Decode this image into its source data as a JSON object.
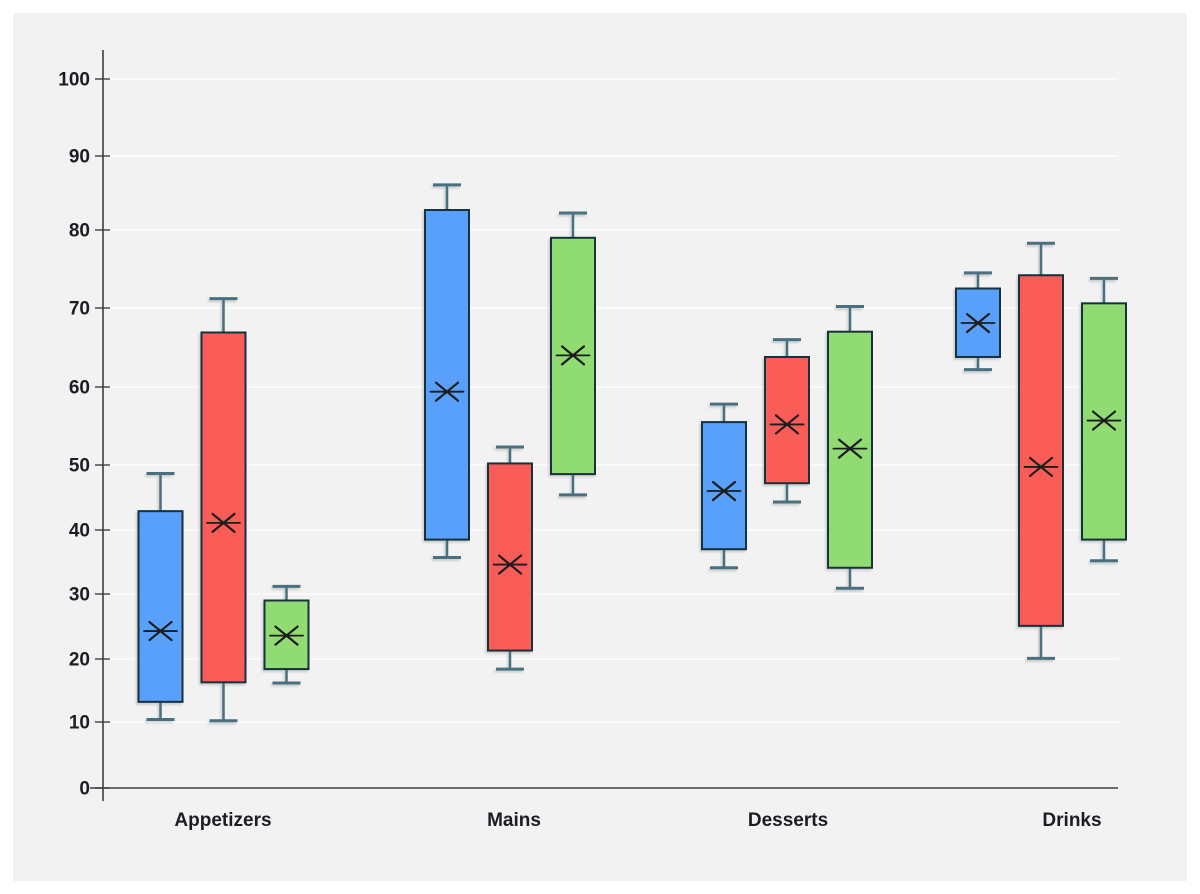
{
  "chart_data": {
    "type": "box",
    "title": "",
    "legend": "none",
    "grid": "horizontal",
    "mean_marker": "x-cross-with-horizontal-line",
    "categories": [
      "Appetizers",
      "Mains",
      "Desserts",
      "Drinks"
    ],
    "y_axis": {
      "min": 0,
      "max": 100,
      "tick_step": 10,
      "tick_labels": [
        "0",
        "10",
        "20",
        "30",
        "40",
        "50",
        "60",
        "70",
        "80",
        "90",
        "100"
      ]
    },
    "series": [
      {
        "name": "blue",
        "color": "#58a0fa",
        "boxes": [
          {
            "category": "Appetizers",
            "min": 10.4,
            "q1": 13.2,
            "mean": 24.3,
            "q3": 42.9,
            "max": 48.7
          },
          {
            "category": "Mains",
            "min": 35.7,
            "q1": 38.5,
            "mean": 59.4,
            "q3": 82.7,
            "max": 86.1
          },
          {
            "category": "Desserts",
            "min": 34.1,
            "q1": 37.0,
            "mean": 46.0,
            "q3": 55.5,
            "max": 57.8
          },
          {
            "category": "Drinks",
            "min": 62.2,
            "q1": 63.8,
            "mean": 68.1,
            "q3": 72.5,
            "max": 74.5
          }
        ]
      },
      {
        "name": "red",
        "color": "#fa5d59",
        "boxes": [
          {
            "category": "Appetizers",
            "min": 10.2,
            "q1": 16.3,
            "mean": 41.1,
            "q3": 66.9,
            "max": 71.2
          },
          {
            "category": "Mains",
            "min": 18.4,
            "q1": 21.3,
            "mean": 34.6,
            "q3": 50.2,
            "max": 52.3
          },
          {
            "category": "Desserts",
            "min": 44.3,
            "q1": 47.2,
            "mean": 55.2,
            "q3": 63.8,
            "max": 66.0
          },
          {
            "category": "Drinks",
            "min": 20.1,
            "q1": 25.1,
            "mean": 49.7,
            "q3": 74.2,
            "max": 78.3
          }
        ]
      },
      {
        "name": "green",
        "color": "#90db72",
        "boxes": [
          {
            "category": "Appetizers",
            "min": 16.2,
            "q1": 18.4,
            "mean": 23.6,
            "q3": 29.0,
            "max": 31.2
          },
          {
            "category": "Mains",
            "min": 45.4,
            "q1": 48.6,
            "mean": 64.0,
            "q3": 79.0,
            "max": 82.3
          },
          {
            "category": "Desserts",
            "min": 30.9,
            "q1": 34.1,
            "mean": 52.1,
            "q3": 67.0,
            "max": 70.2
          },
          {
            "category": "Drinks",
            "min": 35.2,
            "q1": 38.5,
            "mean": 55.7,
            "q3": 70.6,
            "max": 73.8
          }
        ]
      }
    ]
  },
  "colors": {
    "page_bg": "#ffffff",
    "panel_bg": "#f2f2f2",
    "grid_line": "#fafafa",
    "axis_line": "#3f3f3f",
    "tick_mark": "#4a4a4a",
    "text": "#1c1c24",
    "box_border": "#14313e",
    "whisker": "#4a6f7e",
    "mean_marker": "#1b1b1b"
  }
}
